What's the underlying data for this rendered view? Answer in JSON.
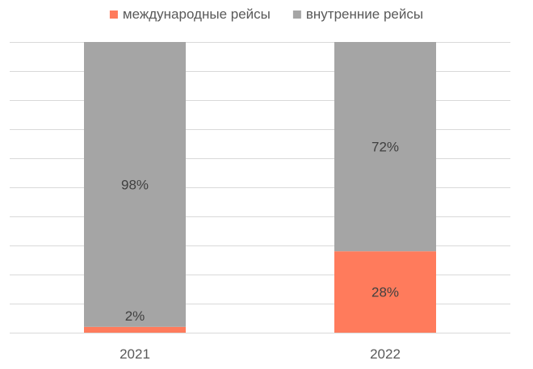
{
  "chart_data": {
    "type": "bar",
    "stacked": true,
    "categories": [
      "2021",
      "2022"
    ],
    "series": [
      {
        "name": "международные рейсы",
        "values": [
          2,
          28
        ],
        "labels": [
          "2%",
          "28%"
        ],
        "color": "#FF7B5C"
      },
      {
        "name": "внутренние рейсы",
        "values": [
          98,
          72
        ],
        "labels": [
          "98%",
          "72%"
        ],
        "color": "#A5A5A5"
      }
    ],
    "ylim": [
      0,
      100
    ],
    "grid": true,
    "legend_position": "top",
    "gridline_color": "#D9D9D9"
  }
}
